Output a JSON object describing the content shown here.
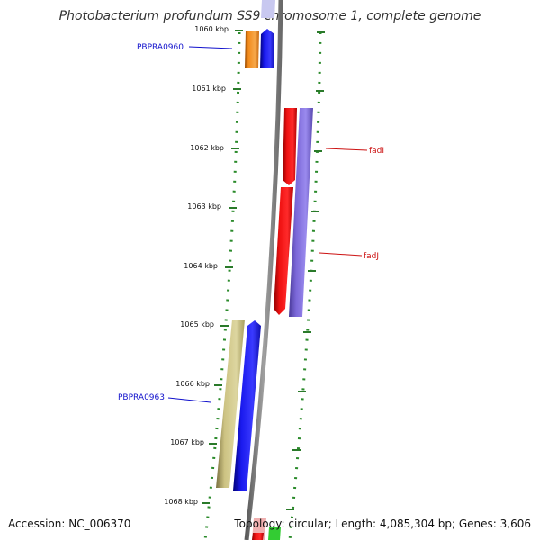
{
  "title": "Photobacterium profundum SS9 chromosome 1, complete genome",
  "footer": {
    "accession": "Accession: NC_006370",
    "topology": "Topology: circular; Length: 4,085,304 bp; Genes: 3,606"
  },
  "ticks": [
    "1060 kbp",
    "1061 kbp",
    "1062 kbp",
    "1063 kbp",
    "1064 kbp",
    "1065 kbp",
    "1066 kbp",
    "1067 kbp",
    "1068 kbp"
  ],
  "gene_labels": [
    {
      "text": "PBPRA0960",
      "color": "#1111cc"
    },
    {
      "text": "fadI",
      "color": "#cc1111"
    },
    {
      "text": "fadJ",
      "color": "#cc1111"
    },
    {
      "text": "PBPRA0963",
      "color": "#1111cc"
    }
  ],
  "colors": {
    "backbone": "#8a8a8a",
    "dotted_track": "#2a8a2a",
    "orange_feature": "#f28a1a",
    "blue_feature": "#1a1aee",
    "red_feature": "#ee1111",
    "purple_feature": "#7b68d8",
    "khaki_feature": "#cdc383",
    "green_feature": "#33cc33",
    "pink_feature": "#f0b0b0"
  }
}
